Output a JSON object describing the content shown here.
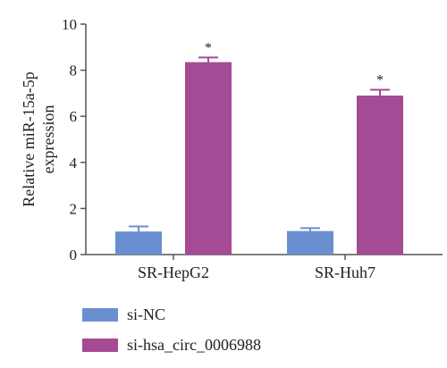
{
  "chart_data": {
    "type": "bar",
    "ylabel_lines": [
      "Relative miR-15a-5p",
      "expression"
    ],
    "categories": [
      "SR-HepG2",
      "SR-Huh7"
    ],
    "ylim": [
      0,
      10
    ],
    "yticks": [
      0,
      2,
      4,
      6,
      8,
      10
    ],
    "series": [
      {
        "name": "si-NC",
        "color": "#6a8fd0",
        "values": [
          1.0,
          1.02
        ],
        "errors": [
          0.22,
          0.13
        ],
        "annotations": [
          "",
          ""
        ]
      },
      {
        "name": "si-hsa_circ_0006988",
        "color": "#a54a94",
        "values": [
          8.35,
          6.9
        ],
        "errors": [
          0.2,
          0.25
        ],
        "annotations": [
          "*",
          "*"
        ]
      }
    ],
    "grid": false,
    "legend_position": "bottom-left"
  }
}
